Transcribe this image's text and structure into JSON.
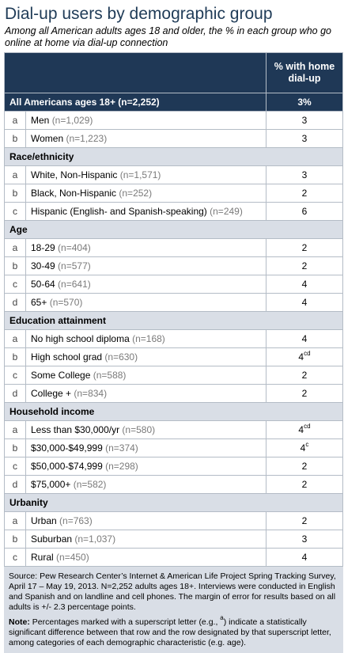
{
  "title": "Dial-up users by demographic group",
  "subtitle": "Among all American adults ages 18 and older, the % in each group who go online at home via dial-up connection",
  "header": {
    "col_label": "",
    "col_value": "% with home dial-up"
  },
  "total": {
    "label": "All Americans ages 18+ (n=2,252)",
    "value": "3%"
  },
  "groups": [
    {
      "label": "",
      "rows": [
        {
          "letter": "a",
          "label": "Men",
          "n": "(n=1,029)",
          "value": "3",
          "sup": ""
        },
        {
          "letter": "b",
          "label": "Women",
          "n": "(n=1,223)",
          "value": "3",
          "sup": ""
        }
      ]
    },
    {
      "label": "Race/ethnicity",
      "rows": [
        {
          "letter": "a",
          "label": "White, Non-Hispanic",
          "n": "(n=1,571)",
          "value": "3",
          "sup": ""
        },
        {
          "letter": "b",
          "label": "Black, Non-Hispanic",
          "n": "(n=252)",
          "value": "2",
          "sup": ""
        },
        {
          "letter": "c",
          "label": "Hispanic (English- and Spanish-speaking)",
          "n": "(n=249)",
          "value": "6",
          "sup": ""
        }
      ]
    },
    {
      "label": "Age",
      "rows": [
        {
          "letter": "a",
          "label": "18-29",
          "n": "(n=404)",
          "value": "2",
          "sup": ""
        },
        {
          "letter": "b",
          "label": "30-49",
          "n": "(n=577)",
          "value": "2",
          "sup": ""
        },
        {
          "letter": "c",
          "label": "50-64",
          "n": "(n=641)",
          "value": "4",
          "sup": ""
        },
        {
          "letter": "d",
          "label": "65+",
          "n": "(n=570)",
          "value": "4",
          "sup": ""
        }
      ]
    },
    {
      "label": "Education attainment",
      "rows": [
        {
          "letter": "a",
          "label": "No high school diploma",
          "n": "(n=168)",
          "value": "4",
          "sup": ""
        },
        {
          "letter": "b",
          "label": "High school grad",
          "n": "(n=630)",
          "value": "4",
          "sup": "cd"
        },
        {
          "letter": "c",
          "label": "Some College",
          "n": "(n=588)",
          "value": "2",
          "sup": ""
        },
        {
          "letter": "d",
          "label": "College +",
          "n": "(n=834)",
          "value": "2",
          "sup": ""
        }
      ]
    },
    {
      "label": "Household income",
      "rows": [
        {
          "letter": "a",
          "label": "Less than $30,000/yr",
          "n": "(n=580)",
          "value": "4",
          "sup": "cd"
        },
        {
          "letter": "b",
          "label": "$30,000-$49,999",
          "n": "(n=374)",
          "value": "4",
          "sup": "c"
        },
        {
          "letter": "c",
          "label": "$50,000-$74,999",
          "n": "(n=298)",
          "value": "2",
          "sup": ""
        },
        {
          "letter": "d",
          "label": "$75,000+",
          "n": "(n=582)",
          "value": "2",
          "sup": ""
        }
      ]
    },
    {
      "label": "Urbanity",
      "rows": [
        {
          "letter": "a",
          "label": "Urban",
          "n": "(n=763)",
          "value": "2",
          "sup": ""
        },
        {
          "letter": "b",
          "label": "Suburban",
          "n": "(n=1,037)",
          "value": "3",
          "sup": ""
        },
        {
          "letter": "c",
          "label": "Rural",
          "n": "(n=450)",
          "value": "4",
          "sup": ""
        }
      ]
    }
  ],
  "source": "Source: Pew Research Center’s Internet & American Life Project Spring Tracking Survey, April 17 – May 19, 2013. N=2,252 adults ages 18+. Interviews were conducted in English and Spanish and on landline and cell phones. The margin of error for results based on all adults is +/- 2.3 percentage points.",
  "note_prefix": "Note:",
  "note_a": " Percentages marked with a superscript letter (e.g., ",
  "note_sup": "a",
  "note_b": ") indicate a statistically significant difference between that row and the row designated by that superscript letter, among categories of each demographic characteristic (e.g. age).",
  "colors": {
    "header_bg": "#1f3856",
    "section_bg": "#d9dee6",
    "title": "#1f3b57"
  }
}
